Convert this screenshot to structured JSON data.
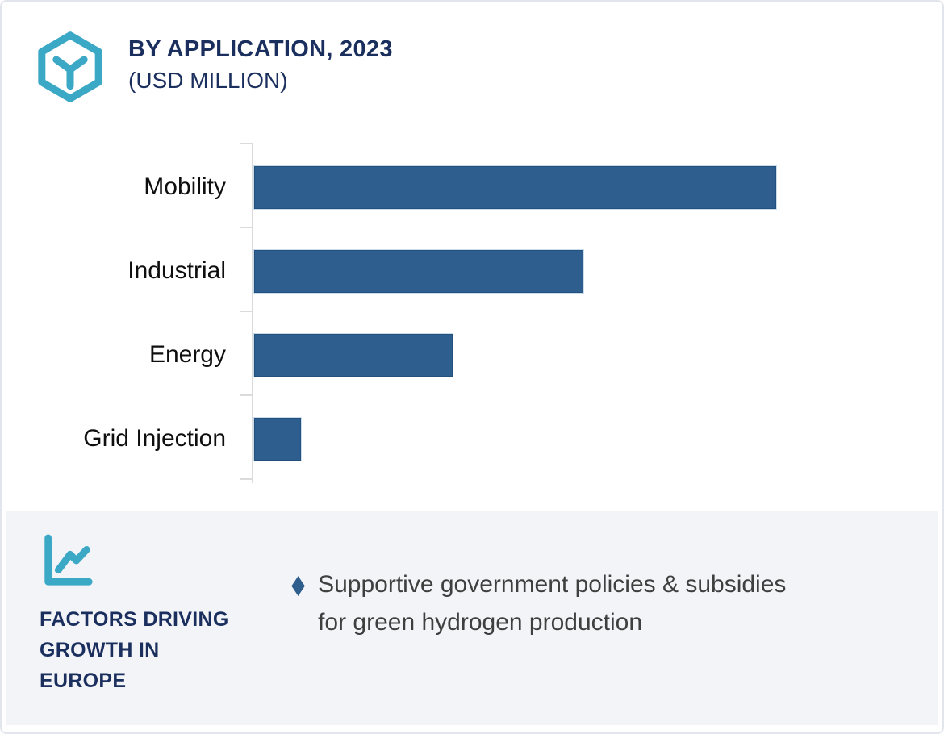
{
  "card": {
    "header": {
      "title": "BY APPLICATION, 2023",
      "subtitle": "(USD MILLION)"
    },
    "footer": {
      "heading": "FACTORS DRIVING\nGROWTH IN\nEUROPE",
      "bullet_marker": "◆",
      "bullets": [
        "Supportive government policies & subsidies\nfor green hydrogen production"
      ]
    },
    "icons": {
      "logo": "hexagon-cube-icon",
      "footer": "line-chart-icon",
      "bullet": "diamond-bullet-icon"
    },
    "colors": {
      "teal": "#3BA8C6",
      "navy": "#1B2F5E",
      "bar_blue": "#2E5E8E",
      "panel_bg": "#F3F4F8",
      "body_text": "#3F3F3F",
      "axis_gray": "#DBDBDB"
    }
  },
  "chart_data": {
    "type": "bar",
    "orientation": "horizontal",
    "title": "BY APPLICATION, 2023 (USD MILLION)",
    "unit": "USD Million",
    "categories": [
      "Mobility",
      "Industrial",
      "Energy",
      "Grid Injection"
    ],
    "values": [
      100,
      63,
      38,
      9
    ],
    "value_scale": "relative percent of largest bar; chart shows no numeric axis labels",
    "xlim": [
      0,
      100
    ],
    "xlabel": "",
    "ylabel": "",
    "bar_color": "#2E5E8E",
    "grid": false,
    "legend": false
  }
}
